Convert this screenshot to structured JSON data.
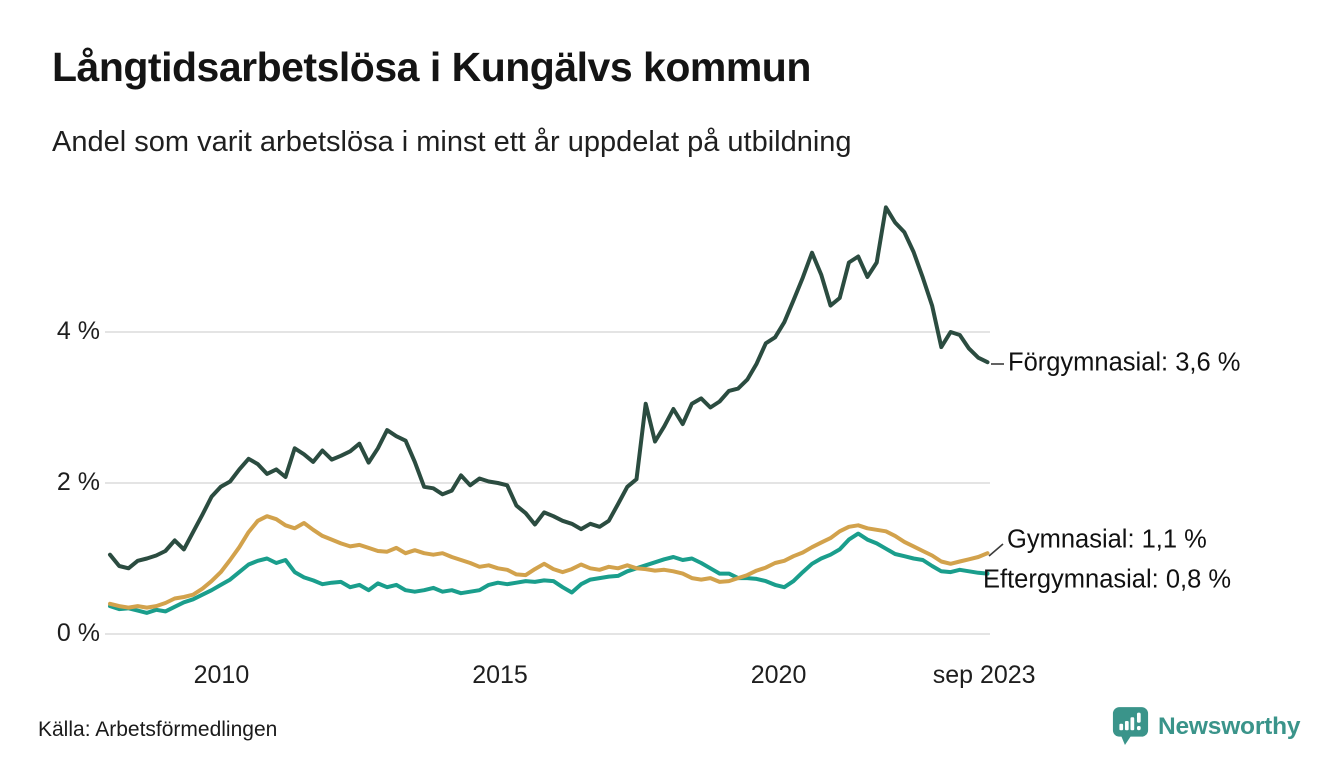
{
  "header": {
    "title": "Långtidsarbetslösa i Kungälvs kommun",
    "subtitle": "Andel som varit arbetslösa i minst ett år uppdelat på utbildning"
  },
  "footer": {
    "source": "Källa: Arbetsförmedlingen",
    "brand": "Newsworthy",
    "brand_color": "#3a948a"
  },
  "chart_data": {
    "type": "line",
    "title": "Långtidsarbetslösa i Kungälvs kommun",
    "subtitle": "Andel som varit arbetslösa i minst ett år uppdelat på utbildning",
    "grid": "horizontal-only",
    "legend_position": "line-end-labels",
    "x_axis": {
      "range": [
        2008.0,
        2023.75
      ],
      "ticks": [
        {
          "t": 2010,
          "label": "2010"
        },
        {
          "t": 2015,
          "label": "2015"
        },
        {
          "t": 2020,
          "label": "2020"
        },
        {
          "t": 2023.69,
          "label": "sep 2023"
        }
      ]
    },
    "y_axis": {
      "unit": "%",
      "range": [
        0,
        5.9
      ],
      "ticks": [
        {
          "v": 0,
          "label": "0 %"
        },
        {
          "v": 2,
          "label": "2 %"
        },
        {
          "v": 4,
          "label": "4 %"
        }
      ]
    },
    "series": [
      {
        "id": "eftergymnasial",
        "name": "Eftergymnasial",
        "end_label": "Eftergymnasial: 0,8 %",
        "end_value": "0,8 %",
        "color": "#1a9e8c",
        "values": [
          0.37,
          0.33,
          0.34,
          0.31,
          0.28,
          0.32,
          0.3,
          0.36,
          0.42,
          0.46,
          0.52,
          0.58,
          0.65,
          0.72,
          0.82,
          0.92,
          0.97,
          1.0,
          0.94,
          0.98,
          0.82,
          0.75,
          0.71,
          0.66,
          0.68,
          0.69,
          0.62,
          0.65,
          0.58,
          0.67,
          0.62,
          0.65,
          0.58,
          0.56,
          0.58,
          0.61,
          0.56,
          0.58,
          0.54,
          0.56,
          0.58,
          0.65,
          0.68,
          0.66,
          0.68,
          0.7,
          0.69,
          0.71,
          0.7,
          0.62,
          0.55,
          0.66,
          0.72,
          0.74,
          0.76,
          0.77,
          0.83,
          0.87,
          0.91,
          0.95,
          0.99,
          1.02,
          0.98,
          1.0,
          0.94,
          0.87,
          0.8,
          0.8,
          0.74,
          0.74,
          0.73,
          0.7,
          0.65,
          0.62,
          0.7,
          0.82,
          0.93,
          1.0,
          1.05,
          1.12,
          1.25,
          1.33,
          1.25,
          1.2,
          1.13,
          1.06,
          1.03,
          1.0,
          0.98,
          0.9,
          0.83,
          0.82,
          0.85,
          0.83,
          0.81,
          0.8
        ]
      },
      {
        "id": "gymnasial",
        "name": "Gymnasial",
        "end_label": "Gymnasial: 1,1 %",
        "end_value": "1,1 %",
        "color": "#d2a24c",
        "values": [
          0.4,
          0.37,
          0.35,
          0.37,
          0.35,
          0.37,
          0.41,
          0.47,
          0.49,
          0.52,
          0.6,
          0.7,
          0.82,
          0.98,
          1.15,
          1.35,
          1.5,
          1.56,
          1.52,
          1.44,
          1.4,
          1.47,
          1.38,
          1.3,
          1.25,
          1.2,
          1.16,
          1.18,
          1.14,
          1.1,
          1.09,
          1.14,
          1.07,
          1.11,
          1.07,
          1.05,
          1.07,
          1.02,
          0.98,
          0.94,
          0.89,
          0.91,
          0.87,
          0.85,
          0.79,
          0.78,
          0.86,
          0.93,
          0.86,
          0.82,
          0.86,
          0.92,
          0.87,
          0.85,
          0.89,
          0.87,
          0.91,
          0.87,
          0.86,
          0.84,
          0.85,
          0.83,
          0.8,
          0.74,
          0.72,
          0.74,
          0.69,
          0.7,
          0.74,
          0.78,
          0.84,
          0.88,
          0.94,
          0.97,
          1.03,
          1.08,
          1.15,
          1.21,
          1.27,
          1.36,
          1.42,
          1.44,
          1.4,
          1.38,
          1.36,
          1.3,
          1.22,
          1.16,
          1.1,
          1.04,
          0.96,
          0.93,
          0.96,
          0.99,
          1.02,
          1.07
        ]
      },
      {
        "id": "forgymnasial",
        "name": "Förgymnasial",
        "end_label": "Förgymnasial: 3,6 %",
        "end_value": "3,6 %",
        "color": "#2b4c40",
        "values": [
          1.05,
          0.9,
          0.87,
          0.97,
          1.0,
          1.04,
          1.1,
          1.24,
          1.12,
          1.35,
          1.58,
          1.82,
          1.95,
          2.02,
          2.18,
          2.32,
          2.25,
          2.12,
          2.18,
          2.08,
          2.46,
          2.38,
          2.28,
          2.43,
          2.31,
          2.36,
          2.42,
          2.52,
          2.27,
          2.46,
          2.7,
          2.62,
          2.56,
          2.28,
          1.95,
          1.93,
          1.85,
          1.9,
          2.1,
          1.97,
          2.06,
          2.02,
          2.0,
          1.97,
          1.7,
          1.6,
          1.45,
          1.61,
          1.56,
          1.5,
          1.46,
          1.39,
          1.46,
          1.42,
          1.5,
          1.72,
          1.95,
          2.05,
          3.05,
          2.55,
          2.75,
          2.98,
          2.78,
          3.05,
          3.12,
          3.0,
          3.08,
          3.22,
          3.25,
          3.37,
          3.58,
          3.85,
          3.93,
          4.13,
          4.42,
          4.72,
          5.05,
          4.76,
          4.35,
          4.45,
          4.92,
          5.0,
          4.73,
          4.92,
          5.65,
          5.45,
          5.32,
          5.06,
          4.72,
          4.35,
          3.8,
          4.0,
          3.96,
          3.78,
          3.66,
          3.6
        ]
      }
    ]
  }
}
